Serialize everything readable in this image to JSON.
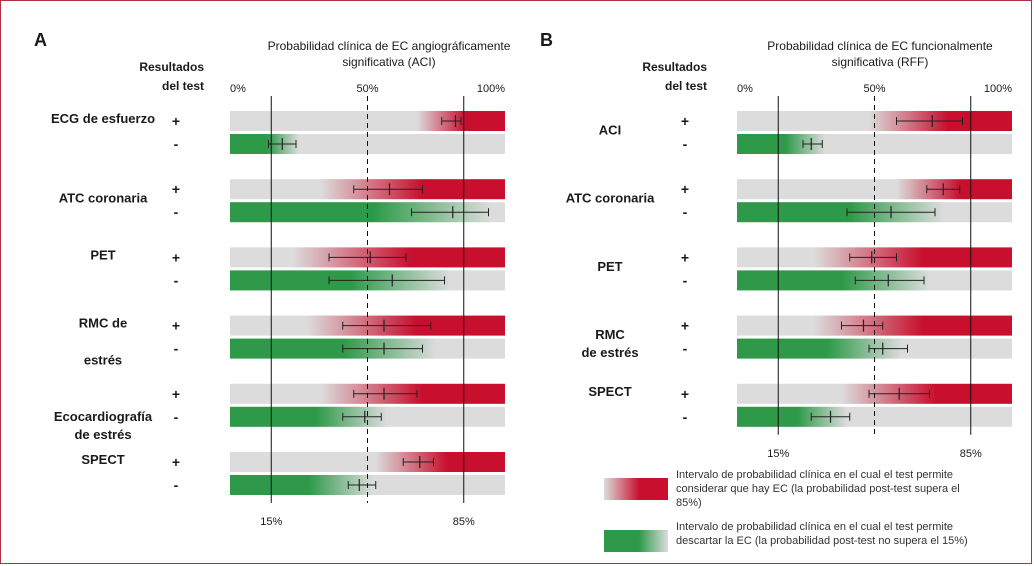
{
  "colors": {
    "positive": "#c8102e",
    "negative": "#2e9a49",
    "background_bar": "#dcdcdc"
  },
  "legend": [
    {
      "key": "positive",
      "lines": [
        "Intervalo de probabilidad clínica en el cual el test permite",
        "considerar que hay EC (la probabilidad post-test supera el",
        "85%)"
      ]
    },
    {
      "key": "negative",
      "lines": [
        "Intervalo de probabilidad clínica en el cual el test permite",
        "descartar la EC (la probabilidad post-test no supera el 15%)"
      ]
    }
  ],
  "chart_data": [
    {
      "type": "bar",
      "panel": "A",
      "title_lines": [
        "Probabilidad clínica de EC angiográficamente",
        "significativa (ACI)"
      ],
      "header_lines": [
        "Resultados",
        "del test"
      ],
      "top_ticks": [
        "0%",
        "50%",
        "100%"
      ],
      "bottom_ticks": [
        "15%",
        "85%"
      ],
      "xlim": [
        0,
        100
      ],
      "vlines_solid": [
        15,
        85
      ],
      "vline_dashed": 50,
      "tests": [
        {
          "label_lines": [
            "ECG de esfuerzo"
          ],
          "label_row": 0
        },
        {
          "label_lines": [
            "ATC coronaria"
          ],
          "label_row": 2.5
        },
        {
          "label_lines": [
            "PET"
          ],
          "label_row": 4
        },
        {
          "label_lines": [
            "RMC de"
          ],
          "label_row": 6
        },
        {
          "label_lines": [
            "estrés"
          ],
          "label_row": 7.6
        },
        {
          "label_lines": [
            "Ecocardiografía",
            "de estrés"
          ],
          "label_row": 9.1
        },
        {
          "label_lines": [
            "SPECT"
          ],
          "label_row": 10
        }
      ],
      "rows": [
        {
          "sign": "+",
          "kind": "positive",
          "threshold": 80,
          "est": 82,
          "lo": 77,
          "hi": 84
        },
        {
          "sign": "-",
          "kind": "negative",
          "threshold": 25,
          "est": 19,
          "lo": 14,
          "hi": 24
        },
        {
          "sign": "+",
          "kind": "positive",
          "threshold": 45,
          "est": 58,
          "lo": 45,
          "hi": 70
        },
        {
          "sign": "-",
          "kind": "negative",
          "threshold": 95,
          "est": 81,
          "lo": 66,
          "hi": 94
        },
        {
          "sign": "+",
          "kind": "positive",
          "threshold": 35,
          "est": 51,
          "lo": 36,
          "hi": 64
        },
        {
          "sign": "-",
          "kind": "negative",
          "threshold": 80,
          "est": 59,
          "lo": 36,
          "hi": 78
        },
        {
          "sign": "+",
          "kind": "positive",
          "threshold": 40,
          "est": 56,
          "lo": 41,
          "hi": 73
        },
        {
          "sign": "-",
          "kind": "negative",
          "threshold": 75,
          "est": 56,
          "lo": 41,
          "hi": 70
        },
        {
          "sign": "+",
          "kind": "positive",
          "threshold": 45,
          "est": 56,
          "lo": 45,
          "hi": 68
        },
        {
          "sign": "-",
          "kind": "negative",
          "threshold": 57,
          "est": 49,
          "lo": 41,
          "hi": 55
        },
        {
          "sign": "+",
          "kind": "positive",
          "threshold": 65,
          "est": 69,
          "lo": 63,
          "hi": 74
        },
        {
          "sign": "-",
          "kind": "negative",
          "threshold": 52,
          "est": 47,
          "lo": 43,
          "hi": 53
        }
      ]
    },
    {
      "type": "bar",
      "panel": "B",
      "title_lines": [
        "Probabilidad clínica de EC funcionalmente",
        "significativa (RFF)"
      ],
      "header_lines": [
        "Resultados",
        "del test"
      ],
      "top_ticks": [
        "0%",
        "50%",
        "100%"
      ],
      "bottom_ticks": [
        "15%",
        "85%"
      ],
      "xlim": [
        0,
        100
      ],
      "vlines_solid": [
        15,
        85
      ],
      "vline_dashed": 50,
      "tests": [
        {
          "label_lines": [
            "ACI"
          ],
          "label_row": 0.5
        },
        {
          "label_lines": [
            "ATC coronaria"
          ],
          "label_row": 2.5
        },
        {
          "label_lines": [
            "PET"
          ],
          "label_row": 4.5
        },
        {
          "label_lines": [
            "RMC",
            "de estrés"
          ],
          "label_row": 6.5
        },
        {
          "label_lines": [
            "SPECT"
          ],
          "label_row": 8
        }
      ],
      "rows": [
        {
          "sign": "+",
          "kind": "positive",
          "threshold": 60,
          "est": 71,
          "lo": 58,
          "hi": 82
        },
        {
          "sign": "-",
          "kind": "negative",
          "threshold": 32,
          "est": 27,
          "lo": 24,
          "hi": 31
        },
        {
          "sign": "+",
          "kind": "positive",
          "threshold": 70,
          "est": 75,
          "lo": 69,
          "hi": 81
        },
        {
          "sign": "-",
          "kind": "negative",
          "threshold": 75,
          "est": 56,
          "lo": 40,
          "hi": 72
        },
        {
          "sign": "+",
          "kind": "positive",
          "threshold": 40,
          "est": 49,
          "lo": 41,
          "hi": 58
        },
        {
          "sign": "-",
          "kind": "negative",
          "threshold": 70,
          "est": 55,
          "lo": 43,
          "hi": 68
        },
        {
          "sign": "+",
          "kind": "positive",
          "threshold": 40,
          "est": 46,
          "lo": 38,
          "hi": 53
        },
        {
          "sign": "-",
          "kind": "negative",
          "threshold": 60,
          "est": 53,
          "lo": 48,
          "hi": 62
        },
        {
          "sign": "+",
          "kind": "positive",
          "threshold": 50,
          "est": 59,
          "lo": 48,
          "hi": 70
        },
        {
          "sign": "-",
          "kind": "negative",
          "threshold": 40,
          "est": 34,
          "lo": 27,
          "hi": 41
        }
      ]
    }
  ]
}
